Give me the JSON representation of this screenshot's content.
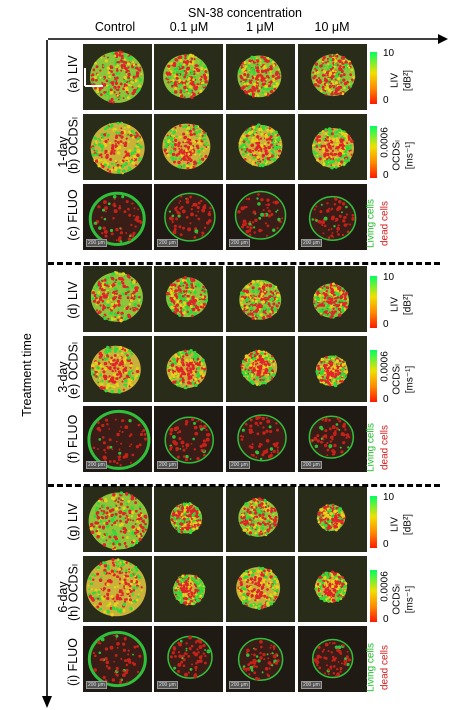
{
  "title": "SN-38 concentration",
  "columns": [
    "Control",
    "0.1 μM",
    "1 μM",
    "10 μM"
  ],
  "y_axis_label": "Treatment time",
  "groups": [
    {
      "label": "1-day",
      "rows": [
        "(a) LIV",
        "(b) OCDSₗ",
        "(c) FLUO"
      ]
    },
    {
      "label": "3-day",
      "rows": [
        "(d) LIV",
        "(e) OCDSₗ",
        "(f) FLUO"
      ]
    },
    {
      "label": "6-day",
      "rows": [
        "(g) LIV",
        "(h) OCDSₗ",
        "(i) FLUO"
      ]
    }
  ],
  "liv_scale": {
    "max": "10",
    "min": "0",
    "label": "LIV",
    "unit": "[dB²]"
  },
  "ocds_scale": {
    "max": "0.0006",
    "min": "0",
    "label": "OCDSₗ",
    "unit": "[ms⁻¹]"
  },
  "fluo_legend": {
    "living": "Living cells",
    "dead": "dead cells"
  },
  "scalebar_text": "200 μm",
  "colors": {
    "living": "#22c02a",
    "dead": "#d42020"
  }
}
